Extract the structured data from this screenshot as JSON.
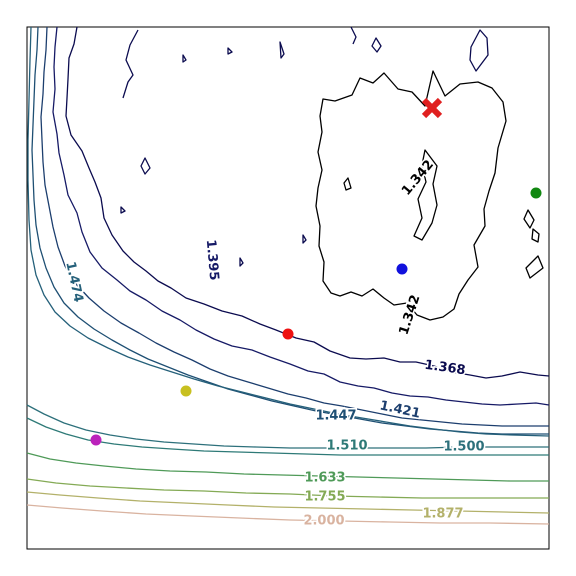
{
  "chart_data": {
    "type": "contour",
    "title": "",
    "xlabel": "",
    "ylabel": "",
    "grid": false,
    "legend": "none",
    "levels": [
      {
        "value": "1.342",
        "color": "#000000"
      },
      {
        "value": "1.368",
        "color": "#0b0b4f"
      },
      {
        "value": "1.395",
        "color": "#161a66"
      },
      {
        "value": "1.421",
        "color": "#1c3e6e"
      },
      {
        "value": "1.447",
        "color": "#1e4f73"
      },
      {
        "value": "1.474",
        "color": "#25607a"
      },
      {
        "value": "1.500",
        "color": "#2d707b"
      },
      {
        "value": "1.510",
        "color": "#2e7a77"
      },
      {
        "value": "1.633",
        "color": "#4f9a58"
      },
      {
        "value": "1.755",
        "color": "#84aa55"
      },
      {
        "value": "1.877",
        "color": "#b3b16a"
      },
      {
        "value": "2.000",
        "color": "#d9b3a0"
      }
    ],
    "markers": [
      {
        "name": "optimum",
        "shape": "x",
        "color": "#e02020"
      },
      {
        "name": "point-green",
        "shape": "dot",
        "color": "#118811"
      },
      {
        "name": "point-blue",
        "shape": "dot",
        "color": "#1111dd"
      },
      {
        "name": "point-red",
        "shape": "dot",
        "color": "#ee1111"
      },
      {
        "name": "point-yellow",
        "shape": "dot",
        "color": "#c8c020"
      },
      {
        "name": "point-magenta",
        "shape": "dot",
        "color": "#bb22bb"
      }
    ]
  }
}
